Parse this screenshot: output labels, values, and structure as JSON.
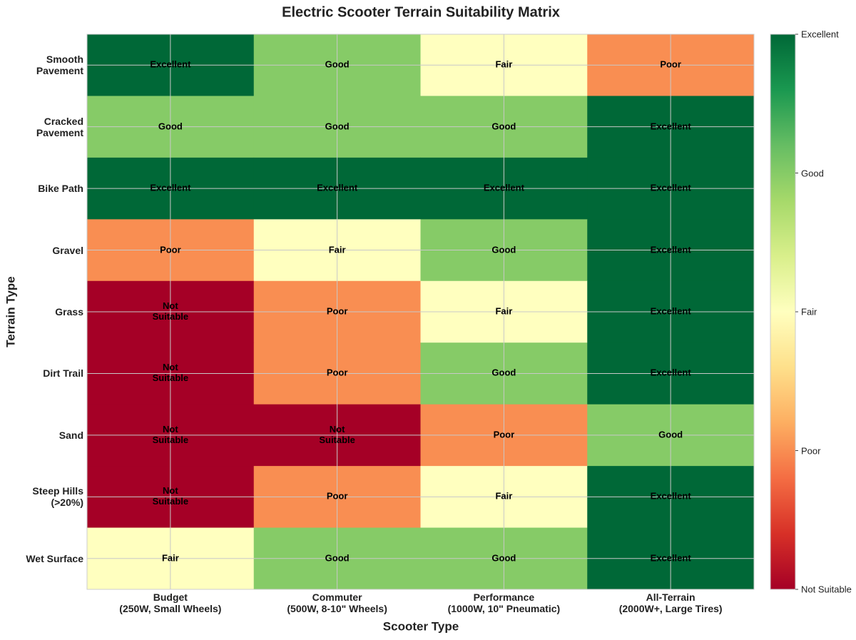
{
  "chart_data": {
    "type": "heatmap",
    "title": "Electric Scooter Terrain Suitability Matrix",
    "x_label": "Scooter Type",
    "y_label": "Terrain Type",
    "x_categories": [
      "Budget\n(250W, Small Wheels)",
      "Commuter\n(500W, 8-10\" Wheels)",
      "Performance\n(1000W, 10\" Pneumatic)",
      "All-Terrain\n(2000W+, Large Tires)"
    ],
    "y_categories": [
      "Smooth\nPavement",
      "Cracked\nPavement",
      "Bike Path",
      "Gravel",
      "Grass",
      "Dirt Trail",
      "Sand",
      "Steep Hills\n(>20%)",
      "Wet Surface"
    ],
    "values": [
      [
        4,
        3,
        2,
        1
      ],
      [
        3,
        3,
        3,
        4
      ],
      [
        4,
        4,
        4,
        4
      ],
      [
        1,
        2,
        3,
        4
      ],
      [
        0,
        1,
        2,
        4
      ],
      [
        0,
        1,
        3,
        4
      ],
      [
        0,
        0,
        1,
        3
      ],
      [
        0,
        1,
        2,
        4
      ],
      [
        2,
        3,
        3,
        4
      ]
    ],
    "value_labels": [
      [
        "Excellent",
        "Good",
        "Fair",
        "Poor"
      ],
      [
        "Good",
        "Good",
        "Good",
        "Excellent"
      ],
      [
        "Excellent",
        "Excellent",
        "Excellent",
        "Excellent"
      ],
      [
        "Poor",
        "Fair",
        "Good",
        "Excellent"
      ],
      [
        "Not\nSuitable",
        "Poor",
        "Fair",
        "Excellent"
      ],
      [
        "Not\nSuitable",
        "Poor",
        "Good",
        "Excellent"
      ],
      [
        "Not\nSuitable",
        "Not\nSuitable",
        "Poor",
        "Good"
      ],
      [
        "Not\nSuitable",
        "Poor",
        "Fair",
        "Excellent"
      ],
      [
        "Fair",
        "Good",
        "Good",
        "Excellent"
      ]
    ],
    "colormap": [
      "#a50026",
      "#d73027",
      "#f46d43",
      "#fdae61",
      "#fee08b",
      "#ffffbf",
      "#d9ef8b",
      "#a6d96a",
      "#66bd63",
      "#1a9850",
      "#006837"
    ],
    "clim": [
      0,
      4
    ],
    "cticks": [
      {
        "value": 0,
        "label": "Not Suitable"
      },
      {
        "value": 1,
        "label": "Poor"
      },
      {
        "value": 2,
        "label": "Fair"
      },
      {
        "value": 3,
        "label": "Good"
      },
      {
        "value": 4,
        "label": "Excellent"
      }
    ],
    "grid": true
  }
}
